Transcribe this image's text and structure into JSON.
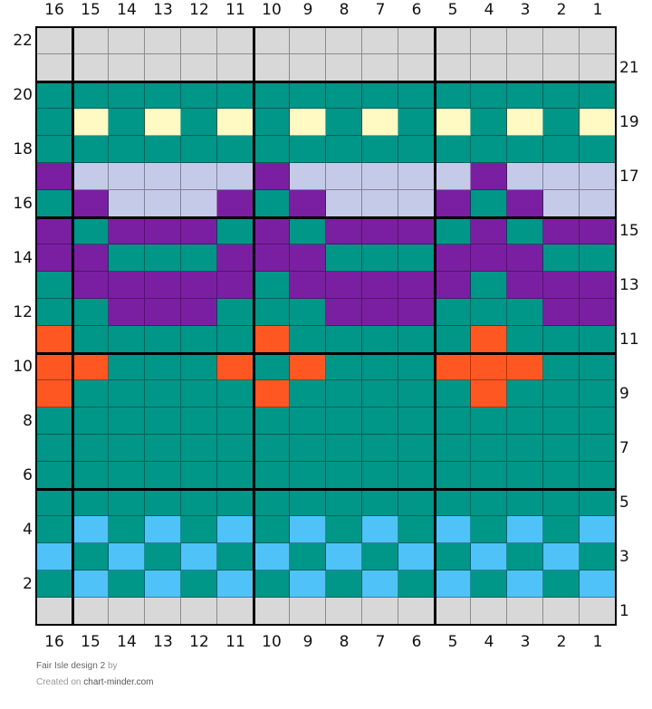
{
  "chart": {
    "title": "Fair Isle design 2",
    "by_label": "by",
    "created_on_label": "Created on",
    "site": "chart-minder.com",
    "columns_label_order": [
      "16",
      "15",
      "14",
      "13",
      "12",
      "11",
      "10",
      "9",
      "8",
      "7",
      "6",
      "5",
      "4",
      "3",
      "2",
      "1"
    ],
    "rows_left_labels": [
      "22",
      "20",
      "18",
      "16",
      "14",
      "12",
      "10",
      "8",
      "6",
      "4",
      "2"
    ],
    "rows_right_labels": [
      "21",
      "19",
      "17",
      "15",
      "13",
      "11",
      "9",
      "7",
      "5",
      "3",
      "1"
    ],
    "palette": {
      "G": "#d8d8d8",
      "T": "#009688",
      "Y": "#fff9c4",
      "L": "#c5cae9",
      "P": "#7b1fa2",
      "O": "#ff5722",
      "B": "#4fc3f7"
    },
    "palette_names": {
      "G": "grey (no stitch)",
      "T": "teal",
      "Y": "pale yellow",
      "L": "lavender",
      "P": "purple",
      "O": "orange",
      "B": "light blue"
    },
    "rows_top_to_bottom": [
      {
        "row": 22,
        "cells": "GGGGGGGGGGGGGGGG"
      },
      {
        "row": 21,
        "cells": "GGGGGGGGGGGGGGGG"
      },
      {
        "row": 20,
        "cells": "TTTTTTTTTTTTTTTT"
      },
      {
        "row": 19,
        "cells": "TYTYTYTYTYTYTYTY"
      },
      {
        "row": 18,
        "cells": "TTTTTTTTTTTTTTTT"
      },
      {
        "row": 17,
        "cells": "PLLLLLPLLLLLPLLL"
      },
      {
        "row": 16,
        "cells": "TPLLLPTPLLLPTPLL"
      },
      {
        "row": 15,
        "cells": "PTPPPTPTPPPTPTPP"
      },
      {
        "row": 14,
        "cells": "PPTTTPPPTTTPPPTT"
      },
      {
        "row": 13,
        "cells": "TPPPPPTPPPPPTPPP"
      },
      {
        "row": 12,
        "cells": "TTPPPTTTPPPTTTPP"
      },
      {
        "row": 11,
        "cells": "OTTTTTOTTTTTOTTT"
      },
      {
        "row": 10,
        "cells": "OOTTTOTOTTTOOOTT"
      },
      {
        "row": 9,
        "cells": "OTTTTTOTTTTTOTTT"
      },
      {
        "row": 8,
        "cells": "TTTTTTTTTTTTTTTT"
      },
      {
        "row": 7,
        "cells": "TTTTTTTTTTTTTTTT"
      },
      {
        "row": 6,
        "cells": "TTTTTTTTTTTTTTTT"
      },
      {
        "row": 5,
        "cells": "TTTTTTTTTTTTTTTT"
      },
      {
        "row": 4,
        "cells": "TBTBTBTBTBTBTBTB"
      },
      {
        "row": 3,
        "cells": "BTBTBTBTBTBTBTBT"
      },
      {
        "row": 2,
        "cells": "TBTBTBTBTBTBTBTB"
      },
      {
        "row": 1,
        "cells": "GGGGGGGGGGGGGGGG"
      }
    ]
  }
}
